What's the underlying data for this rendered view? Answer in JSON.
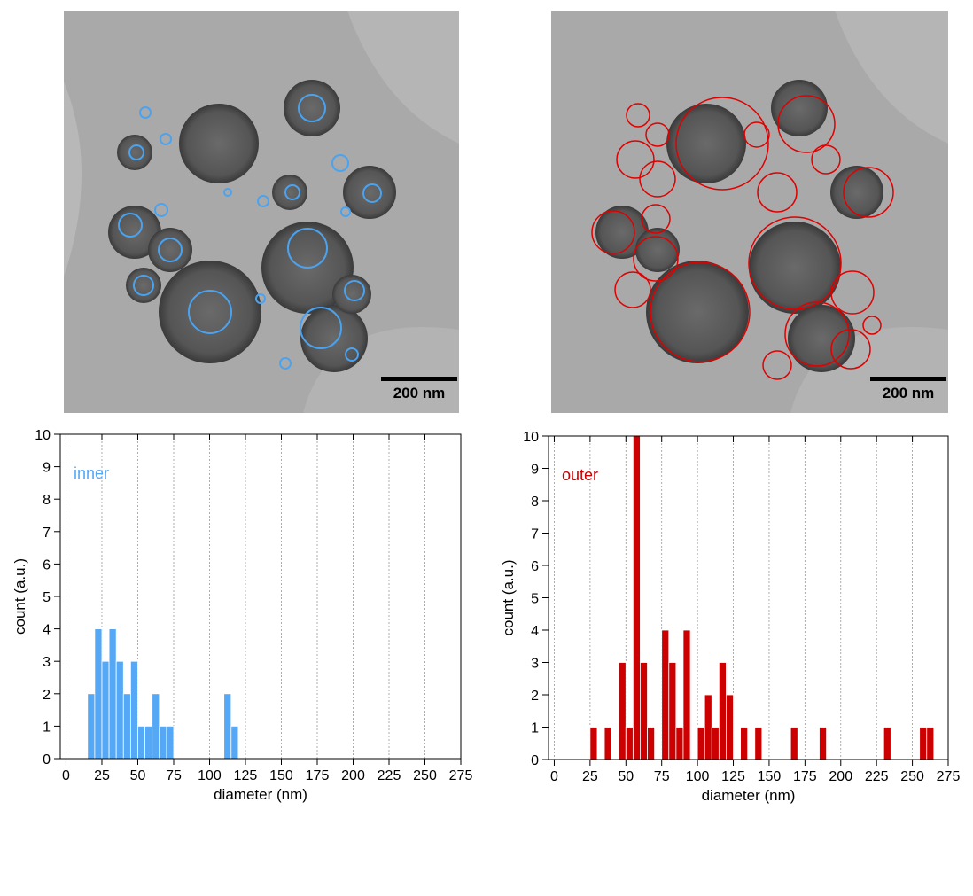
{
  "images": [
    {
      "scale_bar": "200 nm"
    },
    {
      "scale_bar": "200 nm"
    }
  ],
  "chart_data": [
    {
      "type": "histogram",
      "annotation": "inner",
      "color": "#55a8f5",
      "xlabel": "diameter (nm)",
      "ylabel": "count (a.u.)",
      "bins": [
        15,
        20,
        25,
        30,
        35,
        40,
        45,
        50,
        55,
        60,
        65,
        70,
        75,
        80,
        85,
        90,
        95,
        100,
        105,
        110,
        115,
        120
      ],
      "values": [
        2,
        4,
        3,
        4,
        3,
        2,
        3,
        1,
        1,
        2,
        1,
        1,
        0,
        0,
        0,
        0,
        0,
        0,
        0,
        2,
        1
      ],
      "xlim": [
        -4,
        275
      ],
      "ylim": [
        0,
        10
      ],
      "xticks": [
        0,
        25,
        50,
        75,
        100,
        125,
        150,
        175,
        200,
        225,
        250,
        275
      ],
      "yticks": [
        0,
        1,
        2,
        3,
        4,
        5,
        6,
        7,
        8,
        9,
        10
      ],
      "grid": true
    },
    {
      "type": "histogram",
      "annotation": "outer",
      "color": "#cc0000",
      "xlabel": "diameter (nm)",
      "ylabel": "count (a.u.)",
      "bins": [
        25,
        30,
        35,
        40,
        45,
        50,
        55,
        60,
        65,
        70,
        75,
        80,
        85,
        90,
        95,
        100,
        105,
        110,
        115,
        120,
        125,
        130,
        135,
        140,
        145,
        150,
        155,
        160,
        165,
        170,
        175,
        180,
        185,
        190,
        195,
        200,
        205,
        210,
        215,
        220,
        225,
        230,
        235,
        240,
        245,
        250,
        255,
        260,
        265
      ],
      "values": [
        1,
        0,
        1,
        0,
        3,
        1,
        10,
        3,
        1,
        0,
        4,
        3,
        1,
        4,
        0,
        1,
        2,
        1,
        3,
        2,
        0,
        1,
        0,
        1,
        0,
        0,
        0,
        0,
        1,
        0,
        0,
        0,
        1,
        0,
        0,
        0,
        0,
        0,
        0,
        0,
        0,
        1,
        0,
        0,
        0,
        0,
        1,
        1
      ],
      "xlim": [
        -4,
        275
      ],
      "ylim": [
        0,
        10
      ],
      "xticks": [
        0,
        25,
        50,
        75,
        100,
        125,
        150,
        175,
        200,
        225,
        250,
        275
      ],
      "yticks": [
        0,
        1,
        2,
        3,
        4,
        5,
        6,
        7,
        8,
        9,
        10
      ],
      "grid": true
    }
  ]
}
